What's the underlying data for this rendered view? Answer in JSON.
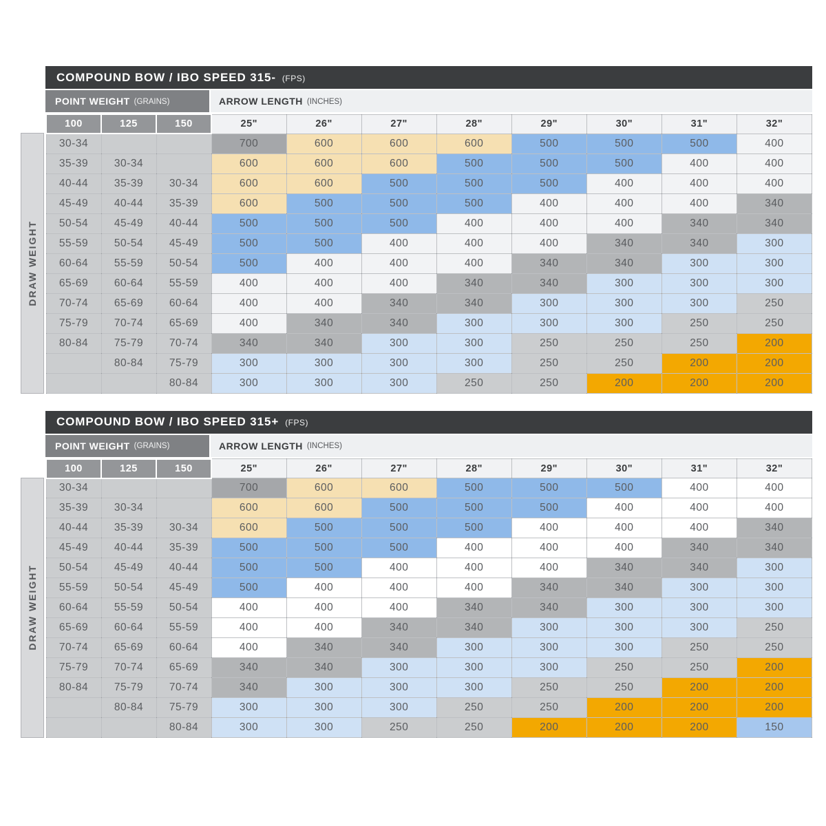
{
  "labels": {
    "point_weight": "POINT WEIGHT",
    "point_weight_unit": "(GRAINS)",
    "arrow_length": "ARROW LENGTH",
    "arrow_length_unit": "(INCHES)",
    "draw_weight": "DRAW WEIGHT"
  },
  "colors": {
    "title_bar_bg": "#3b3d3f",
    "point_weight_bar_bg": "#7f8184",
    "arrow_length_bar_bg": "#eef0f2",
    "point_weight_header_bg": "#949699",
    "arrow_length_header_bg": "#f1f2f4",
    "row_header_bg": "#cbcdcf",
    "draw_weight_strip_bg": "#d8d9db",
    "cell_text": "#5a5c5f"
  },
  "chart_data": [
    {
      "type": "table",
      "title": "COMPOUND BOW / IBO SPEED 315-",
      "title_unit": "(FPS)",
      "point_weight_headers": [
        "100",
        "125",
        "150"
      ],
      "arrow_length_headers": [
        "25\"",
        "26\"",
        "27\"",
        "28\"",
        "29\"",
        "30\"",
        "31\"",
        "32\""
      ],
      "cell_colors": {
        "700": "#a5a7aa",
        "600": "#f6e0b2",
        "500": "#8fb9e9",
        "400": "#f2f3f5",
        "340": "#b3b5b7",
        "300": "#cfe1f5",
        "250": "#cbcdcf",
        "200": "#f3a801"
      },
      "rows": [
        {
          "point_weights": [
            "30-34",
            "",
            ""
          ],
          "spines": [
            "700",
            "600",
            "600",
            "600",
            "500",
            "500",
            "500",
            "400"
          ]
        },
        {
          "point_weights": [
            "35-39",
            "30-34",
            ""
          ],
          "spines": [
            "600",
            "600",
            "600",
            "500",
            "500",
            "500",
            "400",
            "400"
          ]
        },
        {
          "point_weights": [
            "40-44",
            "35-39",
            "30-34"
          ],
          "spines": [
            "600",
            "600",
            "500",
            "500",
            "500",
            "400",
            "400",
            "400"
          ]
        },
        {
          "point_weights": [
            "45-49",
            "40-44",
            "35-39"
          ],
          "spines": [
            "600",
            "500",
            "500",
            "500",
            "400",
            "400",
            "400",
            "340"
          ]
        },
        {
          "point_weights": [
            "50-54",
            "45-49",
            "40-44"
          ],
          "spines": [
            "500",
            "500",
            "500",
            "400",
            "400",
            "400",
            "340",
            "340"
          ]
        },
        {
          "point_weights": [
            "55-59",
            "50-54",
            "45-49"
          ],
          "spines": [
            "500",
            "500",
            "400",
            "400",
            "400",
            "340",
            "340",
            "300"
          ]
        },
        {
          "point_weights": [
            "60-64",
            "55-59",
            "50-54"
          ],
          "spines": [
            "500",
            "400",
            "400",
            "400",
            "340",
            "340",
            "300",
            "300"
          ]
        },
        {
          "point_weights": [
            "65-69",
            "60-64",
            "55-59"
          ],
          "spines": [
            "400",
            "400",
            "400",
            "340",
            "340",
            "300",
            "300",
            "300"
          ]
        },
        {
          "point_weights": [
            "70-74",
            "65-69",
            "60-64"
          ],
          "spines": [
            "400",
            "400",
            "340",
            "340",
            "300",
            "300",
            "300",
            "250"
          ]
        },
        {
          "point_weights": [
            "75-79",
            "70-74",
            "65-69"
          ],
          "spines": [
            "400",
            "340",
            "340",
            "300",
            "300",
            "300",
            "250",
            "250"
          ]
        },
        {
          "point_weights": [
            "80-84",
            "75-79",
            "70-74"
          ],
          "spines": [
            "340",
            "340",
            "300",
            "300",
            "250",
            "250",
            "250",
            "200"
          ]
        },
        {
          "point_weights": [
            "",
            "80-84",
            "75-79"
          ],
          "spines": [
            "300",
            "300",
            "300",
            "300",
            "250",
            "250",
            "200",
            "200"
          ]
        },
        {
          "point_weights": [
            "",
            "",
            "80-84"
          ],
          "spines": [
            "300",
            "300",
            "300",
            "250",
            "250",
            "200",
            "200",
            "200"
          ]
        }
      ]
    },
    {
      "type": "table",
      "title": "COMPOUND BOW / IBO SPEED 315+",
      "title_unit": "(FPS)",
      "point_weight_headers": [
        "100",
        "125",
        "150"
      ],
      "arrow_length_headers": [
        "25\"",
        "26\"",
        "27\"",
        "28\"",
        "29\"",
        "30\"",
        "31\"",
        "32\""
      ],
      "cell_colors": {
        "700": "#a5a7aa",
        "600": "#f6e0b2",
        "500": "#8fb9e9",
        "400": "#ffffff",
        "340": "#b3b5b7",
        "300": "#cfe1f5",
        "250": "#cbcdcf",
        "200": "#f3a801",
        "150": "#a6c7ee"
      },
      "rows": [
        {
          "point_weights": [
            "30-34",
            "",
            ""
          ],
          "spines": [
            "700",
            "600",
            "600",
            "500",
            "500",
            "500",
            "400",
            "400"
          ]
        },
        {
          "point_weights": [
            "35-39",
            "30-34",
            ""
          ],
          "spines": [
            "600",
            "600",
            "500",
            "500",
            "500",
            "400",
            "400",
            "400"
          ]
        },
        {
          "point_weights": [
            "40-44",
            "35-39",
            "30-34"
          ],
          "spines": [
            "600",
            "500",
            "500",
            "500",
            "400",
            "400",
            "400",
            "340"
          ]
        },
        {
          "point_weights": [
            "45-49",
            "40-44",
            "35-39"
          ],
          "spines": [
            "500",
            "500",
            "500",
            "400",
            "400",
            "400",
            "340",
            "340"
          ]
        },
        {
          "point_weights": [
            "50-54",
            "45-49",
            "40-44"
          ],
          "spines": [
            "500",
            "500",
            "400",
            "400",
            "400",
            "340",
            "340",
            "300"
          ]
        },
        {
          "point_weights": [
            "55-59",
            "50-54",
            "45-49"
          ],
          "spines": [
            "500",
            "400",
            "400",
            "400",
            "340",
            "340",
            "300",
            "300"
          ]
        },
        {
          "point_weights": [
            "60-64",
            "55-59",
            "50-54"
          ],
          "spines": [
            "400",
            "400",
            "400",
            "340",
            "340",
            "300",
            "300",
            "300"
          ]
        },
        {
          "point_weights": [
            "65-69",
            "60-64",
            "55-59"
          ],
          "spines": [
            "400",
            "400",
            "340",
            "340",
            "300",
            "300",
            "300",
            "250"
          ]
        },
        {
          "point_weights": [
            "70-74",
            "65-69",
            "60-64"
          ],
          "spines": [
            "400",
            "340",
            "340",
            "300",
            "300",
            "300",
            "250",
            "250"
          ]
        },
        {
          "point_weights": [
            "75-79",
            "70-74",
            "65-69"
          ],
          "spines": [
            "340",
            "340",
            "300",
            "300",
            "300",
            "250",
            "250",
            "200"
          ]
        },
        {
          "point_weights": [
            "80-84",
            "75-79",
            "70-74"
          ],
          "spines": [
            "340",
            "300",
            "300",
            "300",
            "250",
            "250",
            "200",
            "200"
          ]
        },
        {
          "point_weights": [
            "",
            "80-84",
            "75-79"
          ],
          "spines": [
            "300",
            "300",
            "300",
            "250",
            "250",
            "200",
            "200",
            "200"
          ]
        },
        {
          "point_weights": [
            "",
            "",
            "80-84"
          ],
          "spines": [
            "300",
            "300",
            "250",
            "250",
            "200",
            "200",
            "200",
            "150"
          ]
        }
      ]
    }
  ]
}
